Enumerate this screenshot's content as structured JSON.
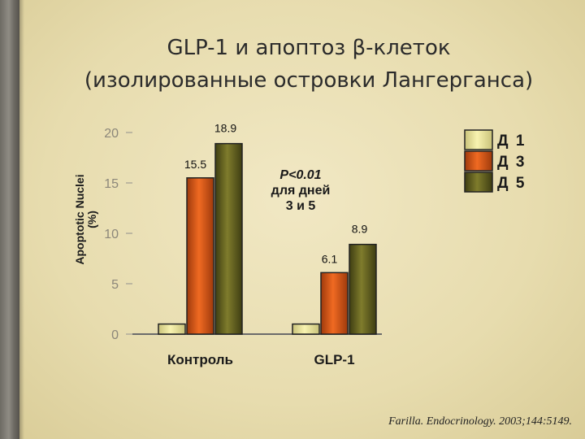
{
  "title_line1": "GLP-1 и апоптоз β-клеток",
  "title_line2": "(изолированные островки Лангерганса)",
  "citation": "Farilla. Endocrinology. 2003;144:5149.",
  "colors": {
    "Д 1": "#f3eea0",
    "Д 3": "#e0581a",
    "Д 5": "#6a6820"
  },
  "chart_data": {
    "type": "bar",
    "categories": [
      "Контроль",
      "GLP-1"
    ],
    "series": [
      {
        "name": "Д 1",
        "values": [
          1,
          1
        ]
      },
      {
        "name": "Д 3",
        "values": [
          15.5,
          6.1
        ]
      },
      {
        "name": "Д 5",
        "values": [
          18.9,
          8.9
        ]
      }
    ],
    "data_labels": [
      {
        "category": "Контроль",
        "series": "Д 3",
        "text": "15.5"
      },
      {
        "category": "Контроль",
        "series": "Д 5",
        "text": "18.9"
      },
      {
        "category": "GLP-1",
        "series": "Д 3",
        "text": "6.1"
      },
      {
        "category": "GLP-1",
        "series": "Д 5",
        "text": "8.9"
      }
    ],
    "ylabel_line1": "Apoptotic Nuclei",
    "ylabel_line2": "(%)",
    "yticks": [
      0,
      5,
      10,
      15,
      20
    ],
    "ylim": [
      0,
      20
    ],
    "legend": [
      "Д 1",
      "Д 3",
      "Д 5"
    ],
    "legend_position": "top-right",
    "annotation": [
      "P<0.01",
      "для дней",
      "3 и 5"
    ],
    "grid": false
  }
}
